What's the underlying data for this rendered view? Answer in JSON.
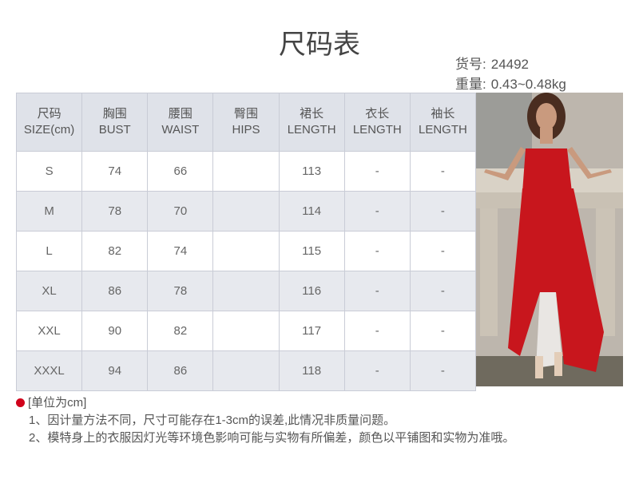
{
  "title": "尺码表",
  "item_no": {
    "label": "货号:",
    "value": "24492"
  },
  "weight": {
    "label": "重量:",
    "value": "0.43~0.48kg"
  },
  "table": {
    "headers": [
      {
        "cn": "尺码",
        "en": "SIZE(cm)"
      },
      {
        "cn": "胸围",
        "en": "BUST"
      },
      {
        "cn": "腰围",
        "en": "WAIST"
      },
      {
        "cn": "臀围",
        "en": "HIPS"
      },
      {
        "cn": "裙长",
        "en": "LENGTH"
      },
      {
        "cn": "衣长",
        "en": "LENGTH"
      },
      {
        "cn": "袖长",
        "en": "LENGTH"
      }
    ],
    "rows": [
      [
        "S",
        "74",
        "66",
        "",
        "113",
        "-",
        "-"
      ],
      [
        "M",
        "78",
        "70",
        "",
        "114",
        "-",
        "-"
      ],
      [
        "L",
        "82",
        "74",
        "",
        "115",
        "-",
        "-"
      ],
      [
        "XL",
        "86",
        "78",
        "",
        "116",
        "-",
        "-"
      ],
      [
        "XXL",
        "90",
        "82",
        "",
        "117",
        "-",
        "-"
      ],
      [
        "XXXL",
        "94",
        "86",
        "",
        "118",
        "-",
        "-"
      ]
    ]
  },
  "notes": {
    "unit": "[单位为cm]",
    "lines": [
      "1、因计量方法不同，尺寸可能存在1-3cm的误差,此情况非质量问题。",
      "2、模特身上的衣服因灯光等环境色影响可能与实物有所偏差，颜色以平铺图和实物为准哦。"
    ]
  },
  "colors": {
    "header_bg": "#dfe2e9",
    "alt_row": "#e7e9ee",
    "bullet": "#d0021b",
    "dress": "#c8161d"
  },
  "photo": {
    "icon": "model-red-dress-photo"
  }
}
